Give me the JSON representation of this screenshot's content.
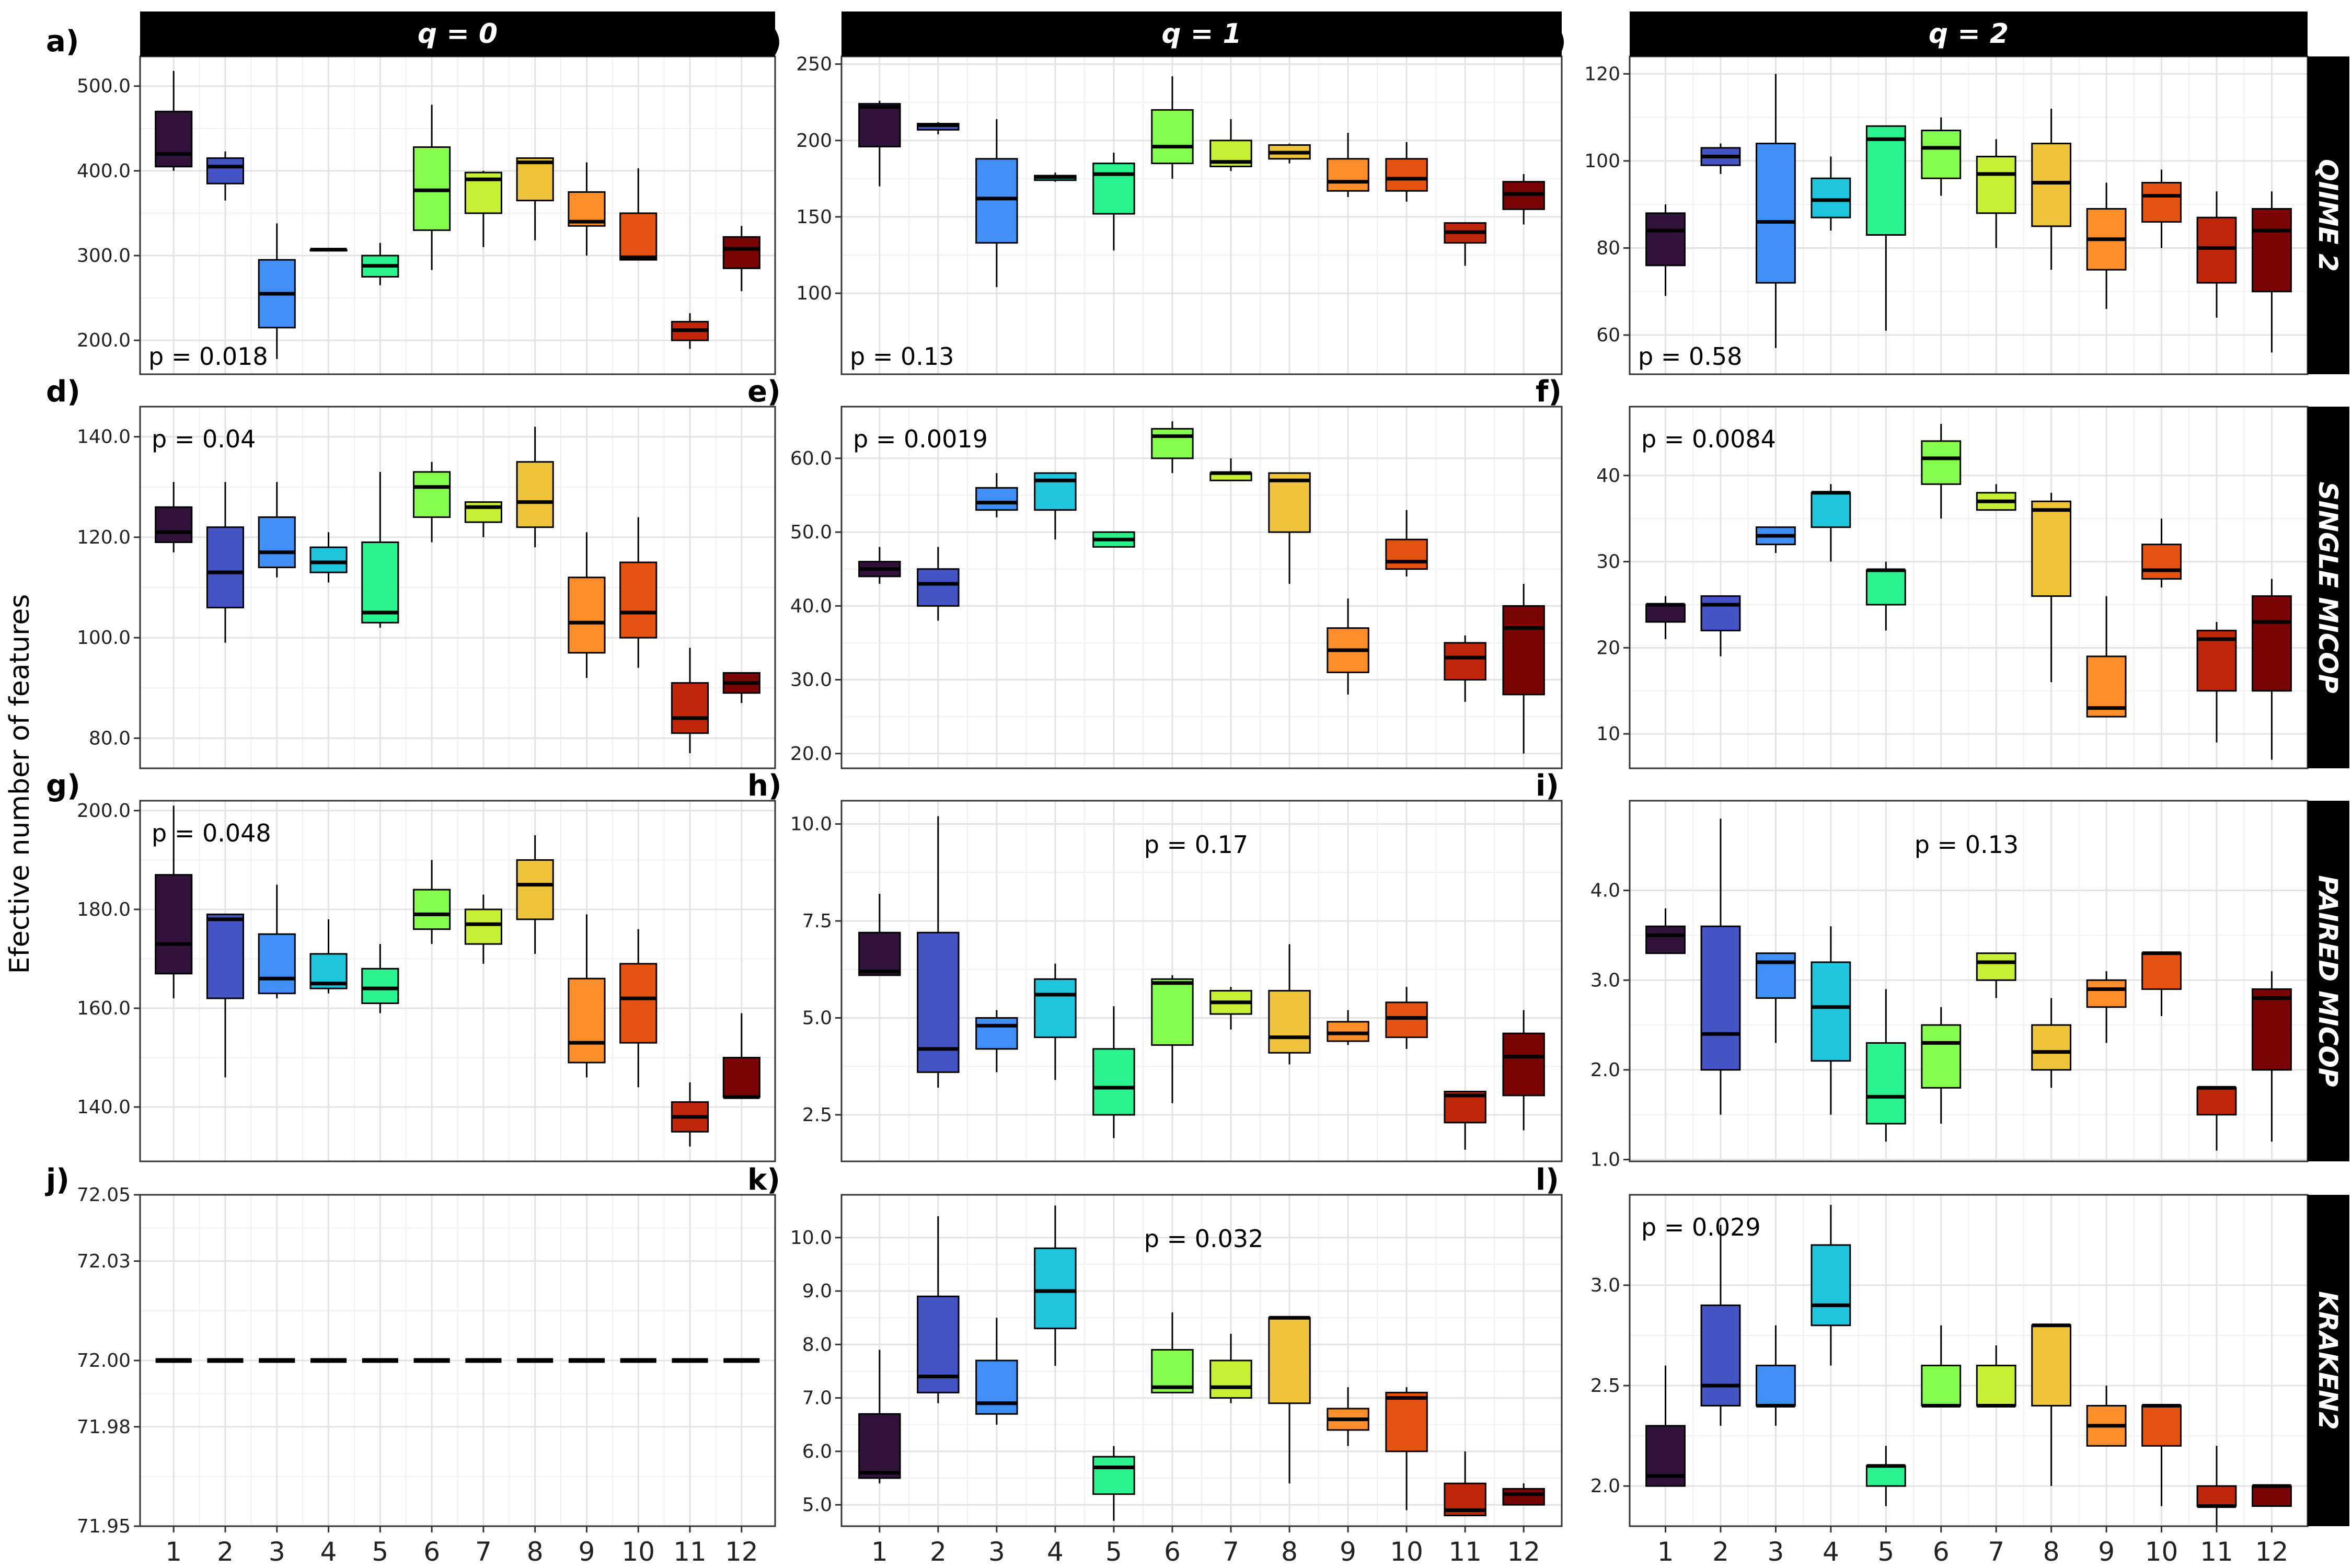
{
  "figure": {
    "ylabel": "Efective number of features",
    "columns": [
      "q = 0",
      "q = 1",
      "q = 2"
    ],
    "rows": [
      "QIIME 2",
      "SINGLE MICOP",
      "PAIRED MICOP",
      "KRAKEN2"
    ],
    "x_categories": [
      "1",
      "2",
      "3",
      "4",
      "5",
      "6",
      "7",
      "8",
      "9",
      "10",
      "11",
      "12"
    ]
  },
  "colors": [
    "#30123b",
    "#4454c4",
    "#3f8ff6",
    "#1fc5dd",
    "#2af28f",
    "#85fe4e",
    "#c7ef34",
    "#f0c43a",
    "#fd8e2a",
    "#e6520f",
    "#c0260a",
    "#7a0403"
  ],
  "chart_data": [
    {
      "type": "box",
      "panel": "a)",
      "title": "q = 0",
      "row": "QIIME 2",
      "ylim": [
        160,
        535
      ],
      "yticks": [
        200,
        300,
        400,
        500
      ],
      "ytick_labels": [
        "200.0",
        "300.0",
        "400.0",
        "500.0"
      ],
      "p_label": "p = 0.018",
      "p_pos": "bottom-left",
      "boxes": [
        [
          400,
          405,
          420,
          470,
          518
        ],
        [
          365,
          385,
          405,
          415,
          423
        ],
        [
          178,
          215,
          255,
          295,
          338
        ],
        [
          307,
          307,
          307,
          307,
          307
        ],
        [
          265,
          275,
          288,
          300,
          315
        ],
        [
          283,
          330,
          377,
          428,
          478
        ],
        [
          310,
          350,
          390,
          398,
          400
        ],
        [
          318,
          365,
          410,
          415,
          415
        ],
        [
          300,
          335,
          340,
          375,
          410
        ],
        [
          295,
          295,
          298,
          350,
          403
        ],
        [
          190,
          200,
          212,
          222,
          232
        ],
        [
          258,
          285,
          308,
          322,
          335
        ]
      ]
    },
    {
      "type": "box",
      "panel": "b)",
      "title": "q = 1",
      "row": "QIIME 2",
      "ylim": [
        47,
        255
      ],
      "yticks": [
        100,
        150,
        200,
        250
      ],
      "ytick_labels": [
        "100",
        "150",
        "200",
        "250"
      ],
      "p_label": "p = 0.13",
      "p_pos": "bottom-left",
      "boxes": [
        [
          170,
          196,
          222,
          224,
          226
        ],
        [
          204,
          207,
          210,
          211,
          212
        ],
        [
          104,
          133,
          162,
          188,
          214
        ],
        [
          173,
          174,
          176,
          177,
          179
        ],
        [
          128,
          152,
          178,
          185,
          192
        ],
        [
          175,
          185,
          196,
          220,
          242
        ],
        [
          180,
          183,
          186,
          200,
          214
        ],
        [
          185,
          188,
          192,
          197,
          198
        ],
        [
          163,
          167,
          173,
          188,
          205
        ],
        [
          160,
          167,
          175,
          188,
          199
        ],
        [
          118,
          133,
          140,
          146,
          146
        ],
        [
          145,
          155,
          165,
          173,
          178
        ]
      ]
    },
    {
      "type": "box",
      "panel": "c)",
      "title": "q = 2",
      "row": "QIIME 2",
      "ylim": [
        51,
        124
      ],
      "yticks": [
        60,
        80,
        100,
        120
      ],
      "ytick_labels": [
        "60",
        "80",
        "100",
        "120"
      ],
      "p_label": "p = 0.58",
      "p_pos": "bottom-left",
      "boxes": [
        [
          69,
          76,
          84,
          88,
          90
        ],
        [
          97,
          99,
          101,
          103,
          104
        ],
        [
          57,
          72,
          86,
          104,
          120
        ],
        [
          84,
          87,
          91,
          96,
          101
        ],
        [
          61,
          83,
          105,
          108,
          108
        ],
        [
          92,
          96,
          103,
          107,
          110
        ],
        [
          80,
          88,
          97,
          101,
          105
        ],
        [
          75,
          85,
          95,
          104,
          112
        ],
        [
          66,
          75,
          82,
          89,
          95
        ],
        [
          80,
          86,
          92,
          95,
          98
        ],
        [
          64,
          72,
          80,
          87,
          93
        ],
        [
          56,
          70,
          84,
          89,
          93
        ]
      ]
    },
    {
      "type": "box",
      "panel": "d)",
      "title": "",
      "row": "SINGLE MICOP",
      "ylim": [
        74,
        146
      ],
      "yticks": [
        80,
        100,
        120,
        140
      ],
      "ytick_labels": [
        "80.0",
        "100.0",
        "120.0",
        "140.0"
      ],
      "p_label": "p = 0.04",
      "p_pos": "top-left",
      "boxes": [
        [
          117,
          119,
          121,
          126,
          131
        ],
        [
          99,
          106,
          113,
          122,
          131
        ],
        [
          112,
          114,
          117,
          124,
          131
        ],
        [
          111,
          113,
          115,
          118,
          121
        ],
        [
          102,
          103,
          105,
          119,
          133
        ],
        [
          119,
          124,
          130,
          133,
          135
        ],
        [
          120,
          123,
          126,
          127,
          127
        ],
        [
          118,
          122,
          127,
          135,
          142
        ],
        [
          92,
          97,
          103,
          112,
          121
        ],
        [
          94,
          100,
          105,
          115,
          124
        ],
        [
          77,
          81,
          84,
          91,
          98
        ],
        [
          87,
          89,
          91,
          93,
          93
        ]
      ]
    },
    {
      "type": "box",
      "panel": "e)",
      "title": "",
      "row": "SINGLE MICOP",
      "ylim": [
        18,
        67
      ],
      "yticks": [
        20,
        30,
        40,
        50,
        60
      ],
      "ytick_labels": [
        "20.0",
        "30.0",
        "40.0",
        "50.0",
        "60.0"
      ],
      "p_label": "p = 0.0019",
      "p_pos": "top-left",
      "boxes": [
        [
          43,
          44,
          45,
          46,
          48
        ],
        [
          38,
          40,
          43,
          45,
          48
        ],
        [
          52,
          53,
          54,
          56,
          58
        ],
        [
          49,
          53,
          57,
          58,
          58
        ],
        [
          48,
          48,
          49,
          50,
          50
        ],
        [
          58,
          60,
          63,
          64,
          65
        ],
        [
          57,
          57,
          58,
          58,
          60
        ],
        [
          43,
          50,
          57,
          58,
          58
        ],
        [
          28,
          31,
          34,
          37,
          41
        ],
        [
          44,
          45,
          46,
          49,
          53
        ],
        [
          27,
          30,
          33,
          35,
          36
        ],
        [
          20,
          28,
          37,
          40,
          43
        ]
      ]
    },
    {
      "type": "box",
      "panel": "f)",
      "title": "",
      "row": "SINGLE MICOP",
      "ylim": [
        6,
        48
      ],
      "yticks": [
        10,
        20,
        30,
        40
      ],
      "ytick_labels": [
        "10",
        "20",
        "30",
        "40"
      ],
      "p_label": "p = 0.0084",
      "p_pos": "top-left",
      "boxes": [
        [
          21,
          23,
          25,
          25,
          26
        ],
        [
          19,
          22,
          25,
          26,
          26
        ],
        [
          31,
          32,
          33,
          34,
          34
        ],
        [
          30,
          34,
          38,
          38,
          39
        ],
        [
          22,
          25,
          29,
          29,
          30
        ],
        [
          35,
          39,
          42,
          44,
          46
        ],
        [
          36,
          36,
          37,
          38,
          39
        ],
        [
          16,
          26,
          36,
          37,
          38
        ],
        [
          12,
          12,
          13,
          19,
          26
        ],
        [
          27,
          28,
          29,
          32,
          35
        ],
        [
          9,
          15,
          21,
          22,
          23
        ],
        [
          7,
          15,
          23,
          26,
          28
        ]
      ]
    },
    {
      "type": "box",
      "panel": "g)",
      "title": "",
      "row": "PAIRED MICOP",
      "ylim": [
        129,
        202
      ],
      "yticks": [
        140,
        160,
        180,
        200
      ],
      "ytick_labels": [
        "140.0",
        "160.0",
        "180.0",
        "200.0"
      ],
      "p_label": "p = 0.048",
      "p_pos": "top-left",
      "boxes": [
        [
          162,
          167,
          173,
          187,
          201
        ],
        [
          146,
          162,
          178,
          179,
          179
        ],
        [
          162,
          163,
          166,
          175,
          185
        ],
        [
          163,
          164,
          165,
          171,
          178
        ],
        [
          159,
          161,
          164,
          168,
          173
        ],
        [
          173,
          176,
          179,
          184,
          190
        ],
        [
          169,
          173,
          177,
          180,
          183
        ],
        [
          171,
          178,
          185,
          190,
          195
        ],
        [
          146,
          149,
          153,
          166,
          179
        ],
        [
          144,
          153,
          162,
          169,
          176
        ],
        [
          132,
          135,
          138,
          141,
          145
        ],
        [
          142,
          142,
          142,
          150,
          159
        ]
      ]
    },
    {
      "type": "box",
      "panel": "h)",
      "title": "",
      "row": "PAIRED MICOP",
      "ylim": [
        1.3,
        10.6
      ],
      "yticks": [
        2.5,
        5.0,
        7.5,
        10.0
      ],
      "ytick_labels": [
        "2.5",
        "5.0",
        "7.5",
        "10.0"
      ],
      "p_label": "p = 0.17",
      "p_pos": "top-center",
      "boxes": [
        [
          6.1,
          6.1,
          6.2,
          7.2,
          8.2
        ],
        [
          3.2,
          3.6,
          4.2,
          7.2,
          10.2
        ],
        [
          3.6,
          4.2,
          4.8,
          5.0,
          5.2
        ],
        [
          3.4,
          4.5,
          5.6,
          6.0,
          6.4
        ],
        [
          1.9,
          2.5,
          3.2,
          4.2,
          5.3
        ],
        [
          2.8,
          4.3,
          5.9,
          6.0,
          6.1
        ],
        [
          4.7,
          5.1,
          5.4,
          5.7,
          5.8
        ],
        [
          3.8,
          4.1,
          4.5,
          5.7,
          6.9
        ],
        [
          4.3,
          4.4,
          4.6,
          4.9,
          5.2
        ],
        [
          4.2,
          4.5,
          5.0,
          5.4,
          5.8
        ],
        [
          1.6,
          2.3,
          3.0,
          3.1,
          3.1
        ],
        [
          2.1,
          3.0,
          4.0,
          4.6,
          5.2
        ]
      ]
    },
    {
      "type": "box",
      "panel": "i)",
      "title": "",
      "row": "PAIRED MICOP",
      "ylim": [
        0.98,
        5.0
      ],
      "yticks": [
        1.0,
        2.0,
        3.0,
        4.0
      ],
      "ytick_labels": [
        "1.0",
        "2.0",
        "3.0",
        "4.0"
      ],
      "p_label": "p = 0.13",
      "p_pos": "top-center",
      "boxes": [
        [
          3.3,
          3.3,
          3.5,
          3.6,
          3.8
        ],
        [
          1.5,
          2.0,
          2.4,
          3.6,
          4.8
        ],
        [
          2.3,
          2.8,
          3.2,
          3.3,
          3.3
        ],
        [
          1.5,
          2.1,
          2.7,
          3.2,
          3.6
        ],
        [
          1.2,
          1.4,
          1.7,
          2.3,
          2.9
        ],
        [
          1.4,
          1.8,
          2.3,
          2.5,
          2.7
        ],
        [
          2.8,
          3.0,
          3.2,
          3.3,
          3.3
        ],
        [
          1.8,
          2.0,
          2.2,
          2.5,
          2.8
        ],
        [
          2.3,
          2.7,
          2.9,
          3.0,
          3.1
        ],
        [
          2.6,
          2.9,
          3.3,
          3.3,
          3.3
        ],
        [
          1.1,
          1.5,
          1.8,
          1.8,
          1.8
        ],
        [
          1.2,
          2.0,
          2.8,
          2.9,
          3.1
        ]
      ]
    },
    {
      "type": "box",
      "panel": "j)",
      "title": "",
      "row": "KRAKEN2",
      "ylim": [
        71.95,
        72.05
      ],
      "yticks": [
        71.95,
        71.98,
        72.0,
        72.03,
        72.05
      ],
      "ytick_labels": [
        "71.95",
        "71.98",
        "72.00",
        "72.03",
        "72.05"
      ],
      "p_label": "",
      "p_pos": "",
      "boxes": [
        [
          72,
          72,
          72,
          72,
          72
        ],
        [
          72,
          72,
          72,
          72,
          72
        ],
        [
          72,
          72,
          72,
          72,
          72
        ],
        [
          72,
          72,
          72,
          72,
          72
        ],
        [
          72,
          72,
          72,
          72,
          72
        ],
        [
          72,
          72,
          72,
          72,
          72
        ],
        [
          72,
          72,
          72,
          72,
          72
        ],
        [
          72,
          72,
          72,
          72,
          72
        ],
        [
          72,
          72,
          72,
          72,
          72
        ],
        [
          72,
          72,
          72,
          72,
          72
        ],
        [
          72,
          72,
          72,
          72,
          72
        ],
        [
          72,
          72,
          72,
          72,
          72
        ]
      ]
    },
    {
      "type": "box",
      "panel": "k)",
      "title": "",
      "row": "KRAKEN2",
      "ylim": [
        4.6,
        10.8
      ],
      "yticks": [
        5.0,
        6.0,
        7.0,
        8.0,
        9.0,
        10.0
      ],
      "ytick_labels": [
        "5.0",
        "6.0",
        "7.0",
        "8.0",
        "9.0",
        "10.0"
      ],
      "p_label": "p = 0.032",
      "p_pos": "top-center",
      "boxes": [
        [
          5.4,
          5.5,
          5.6,
          6.7,
          7.9
        ],
        [
          6.9,
          7.1,
          7.4,
          8.9,
          10.4
        ],
        [
          6.5,
          6.7,
          6.9,
          7.7,
          8.5
        ],
        [
          7.6,
          8.3,
          9.0,
          9.8,
          10.6
        ],
        [
          4.7,
          5.2,
          5.7,
          5.9,
          6.1
        ],
        [
          7.1,
          7.1,
          7.2,
          7.9,
          8.6
        ],
        [
          6.9,
          7.0,
          7.2,
          7.7,
          8.2
        ],
        [
          5.4,
          6.9,
          8.5,
          8.5,
          8.5
        ],
        [
          6.1,
          6.4,
          6.6,
          6.8,
          7.2
        ],
        [
          4.9,
          6.0,
          7.0,
          7.1,
          7.2
        ],
        [
          4.8,
          4.8,
          4.9,
          5.4,
          6.0
        ],
        [
          5.0,
          5.0,
          5.2,
          5.3,
          5.4
        ]
      ]
    },
    {
      "type": "box",
      "panel": "l)",
      "title": "",
      "row": "KRAKEN2",
      "ylim": [
        1.8,
        3.45
      ],
      "yticks": [
        2.0,
        2.5,
        3.0
      ],
      "ytick_labels": [
        "2.0",
        "2.5",
        "3.0"
      ],
      "p_label": "p = 0.029",
      "p_pos": "top-left",
      "boxes": [
        [
          2.0,
          2.0,
          2.05,
          2.3,
          2.6
        ],
        [
          2.3,
          2.4,
          2.5,
          2.9,
          3.3
        ],
        [
          2.3,
          2.4,
          2.4,
          2.6,
          2.8
        ],
        [
          2.6,
          2.8,
          2.9,
          3.2,
          3.4
        ],
        [
          1.9,
          2.0,
          2.1,
          2.1,
          2.2
        ],
        [
          2.4,
          2.4,
          2.4,
          2.6,
          2.8
        ],
        [
          2.4,
          2.4,
          2.4,
          2.6,
          2.7
        ],
        [
          2.0,
          2.4,
          2.8,
          2.8,
          2.8
        ],
        [
          2.2,
          2.2,
          2.3,
          2.4,
          2.5
        ],
        [
          1.9,
          2.2,
          2.4,
          2.4,
          2.4
        ],
        [
          1.8,
          1.9,
          1.9,
          2.0,
          2.2
        ],
        [
          1.9,
          1.9,
          2.0,
          2.0,
          2.0
        ]
      ]
    }
  ]
}
